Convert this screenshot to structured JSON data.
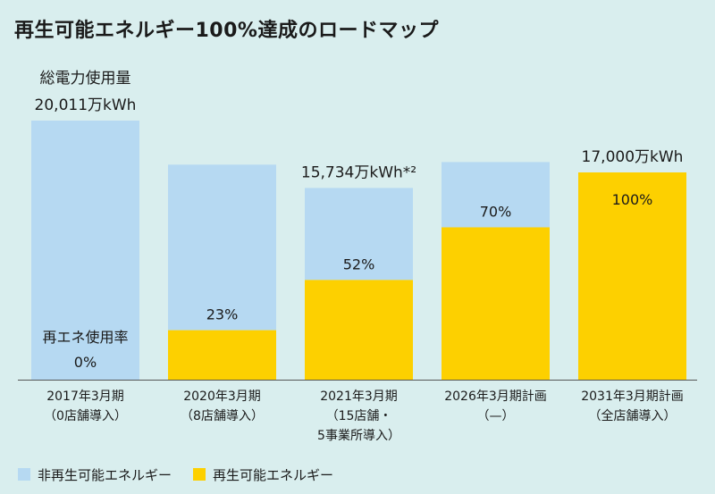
{
  "title": "再生可能エネルギー100%達成のロードマップ",
  "chart_data": {
    "type": "bar",
    "stacked": true,
    "categories": [
      [
        "2017年3月期",
        "（0店舗導入）"
      ],
      [
        "2020年3月期",
        "（8店舗導入）"
      ],
      [
        "2021年3月期",
        "（15店舗・",
        "5事業所導入）"
      ],
      [
        "2026年3月期計画",
        "（—）"
      ],
      [
        "2031年3月期計画",
        "（全店舗導入）"
      ]
    ],
    "series": [
      {
        "name": "非再生可能エネルギー",
        "color": "#b6d9f2"
      },
      {
        "name": "再生可能エネルギー",
        "color": "#fdd000"
      }
    ],
    "bar_totals": [
      100,
      83,
      74,
      84,
      80
    ],
    "renewable_share": [
      0,
      23,
      52,
      70,
      100
    ],
    "share_labels": [
      "0%",
      "23%",
      "52%",
      "70%",
      "100%"
    ],
    "inner_label": "再エネ使用率",
    "total_annotations": [
      {
        "bar": 0,
        "lines": [
          "総電力使用量",
          "20,011万kWh"
        ]
      },
      {
        "bar": 2,
        "lines": [
          "15,734万kWh*²"
        ]
      },
      {
        "bar": 4,
        "lines": [
          "17,000万kWh"
        ]
      }
    ],
    "legend_position": "bottom-left",
    "grid": false
  }
}
